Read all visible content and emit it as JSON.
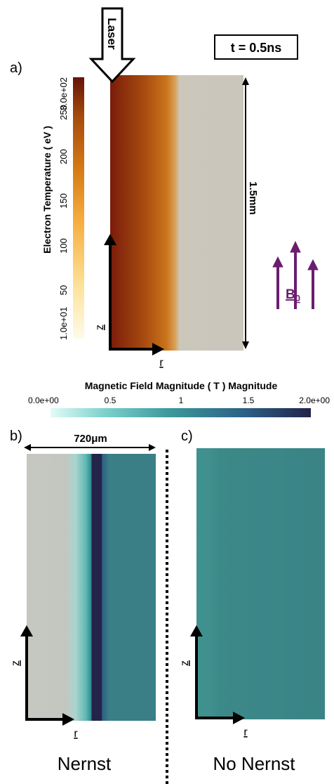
{
  "panel_a": {
    "label": "a)",
    "laser_label": "Laser",
    "time_label": "t = 0.5ns",
    "colorbar": {
      "title": "Electron Temperature ( eV )",
      "ticks": [
        "1.0e+01",
        "50",
        "100",
        "150",
        "200",
        "250",
        "3.0e+02"
      ],
      "colors": [
        "#fffbea",
        "#fde29a",
        "#f6ad3f",
        "#d57a14",
        "#a64a0e",
        "#641208"
      ]
    },
    "height_label": "1.5mm",
    "field_label": "B",
    "field_subscript": "0",
    "axis_z": "z",
    "axis_r": "r",
    "field_color": "#6a1d6f"
  },
  "mag_colorbar": {
    "title": "Magnetic Field Magnitude ( T ) Magnitude",
    "ticks": [
      "0.0e+00",
      "0.5",
      "1",
      "1.5",
      "2.0e+00"
    ],
    "colors": [
      "#e3fbf7",
      "#7fd3cf",
      "#3d9a9c",
      "#2c5f85",
      "#22234a"
    ]
  },
  "panel_b": {
    "label": "b)",
    "width_label": "720μm",
    "caption": "Nernst",
    "axis_z": "z",
    "axis_r": "r"
  },
  "panel_c": {
    "label": "c)",
    "caption": "No Nernst",
    "axis_z": "z",
    "axis_r": "r"
  }
}
